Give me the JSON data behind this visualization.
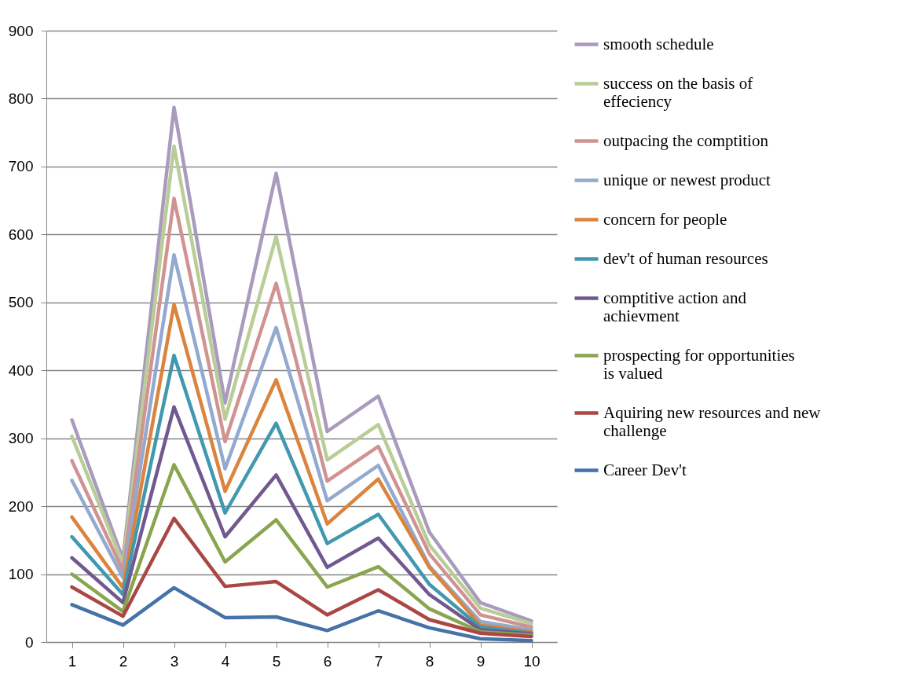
{
  "chart_data": {
    "type": "line",
    "categories": [
      "1",
      "2",
      "3",
      "4",
      "5",
      "6",
      "7",
      "8",
      "9",
      "10"
    ],
    "ylim": [
      0,
      900
    ],
    "yticks": [
      0,
      100,
      200,
      300,
      400,
      500,
      600,
      700,
      800,
      900
    ],
    "grid": "y",
    "legend": "right",
    "marker": "none",
    "line_style": "solid",
    "series": [
      {
        "name": "smooth schedule",
        "color": "#a99bbd",
        "values": [
          327,
          122,
          787,
          352,
          690,
          310,
          362,
          162,
          58,
          31
        ]
      },
      {
        "name": "success on the basis of effeciency",
        "color": "#b9cd96",
        "values": [
          303,
          115,
          730,
          328,
          597,
          268,
          320,
          143,
          50,
          27
        ]
      },
      {
        "name": "outpacing the comptition",
        "color": "#d19392",
        "values": [
          267,
          105,
          653,
          295,
          528,
          237,
          288,
          130,
          40,
          22
        ]
      },
      {
        "name": "unique or newest product",
        "color": "#93a9cf",
        "values": [
          238,
          95,
          570,
          255,
          463,
          208,
          260,
          112,
          30,
          18
        ]
      },
      {
        "name": "concern for people",
        "color": "#db843d",
        "values": [
          184,
          80,
          497,
          222,
          386,
          174,
          240,
          110,
          25,
          15
        ]
      },
      {
        "name": "dev't of human resources",
        "color": "#4198af",
        "values": [
          155,
          70,
          422,
          190,
          322,
          145,
          188,
          85,
          22,
          13
        ]
      },
      {
        "name": "comptitive action and achievment",
        "color": "#71588f",
        "values": [
          124,
          58,
          346,
          155,
          246,
          110,
          153,
          70,
          18,
          12
        ]
      },
      {
        "name": "prospecting for opportunities is valued",
        "color": "#89a54e",
        "values": [
          100,
          45,
          261,
          118,
          180,
          81,
          111,
          49,
          15,
          10
        ]
      },
      {
        "name": "Aquiring new resources and new challenge",
        "color": "#aa4643",
        "values": [
          81,
          38,
          182,
          82,
          89,
          40,
          77,
          33,
          13,
          8
        ]
      },
      {
        "name": "Career Dev't",
        "color": "#4572a7",
        "values": [
          55,
          25,
          80,
          36,
          37,
          17,
          46,
          21,
          5,
          2
        ]
      }
    ]
  }
}
